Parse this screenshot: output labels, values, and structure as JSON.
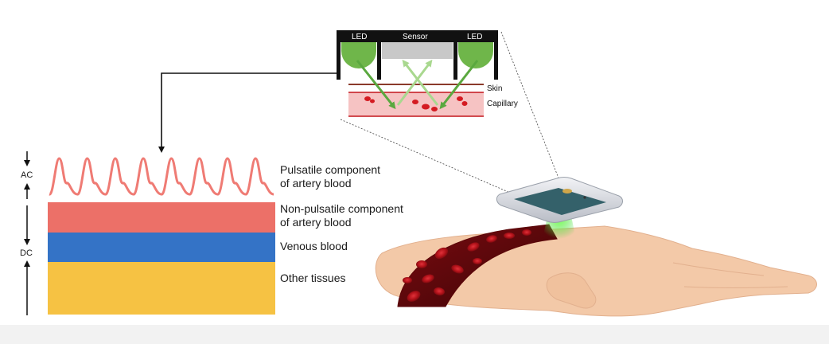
{
  "sensor_diagram": {
    "led_left_label": "LED",
    "sensor_label": "Sensor",
    "led_right_label": "LED",
    "skin_label": "Skin",
    "capillary_label": "Capillary"
  },
  "signal_axis": {
    "ac_label": "AC",
    "dc_label": "DC"
  },
  "layers": [
    {
      "label_line1": "Pulsatile component",
      "label_line2": "of artery blood",
      "color": "#ef7b74"
    },
    {
      "label_line1": "Non-pulsatile component",
      "label_line2": "of artery blood",
      "color": "#ec7068"
    },
    {
      "label_line1": "Venous blood",
      "label_line2": "",
      "color": "#3473c6"
    },
    {
      "label_line1": "Other tissues",
      "label_line2": "",
      "color": "#f6c243"
    }
  ],
  "colors": {
    "led_green": "#6fb64a",
    "sensor_gray": "#c8c8c8",
    "arrow_green": "#5aa83f",
    "skin_brown": "#8b3a2a",
    "capillary_pink": "#f6c3c3",
    "blood_red": "#c4161c",
    "hand_skin": "#f3c9a8"
  }
}
